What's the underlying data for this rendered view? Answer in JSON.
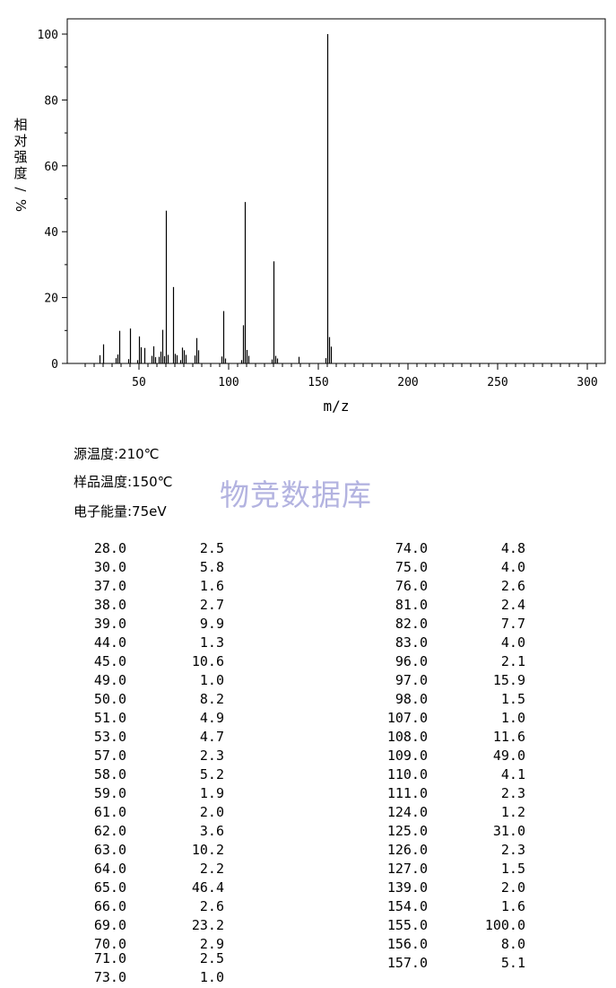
{
  "chart_data": {
    "type": "bar",
    "xlabel": "m/z",
    "ylabel": "相对强度/%",
    "xlim": [
      10,
      310
    ],
    "ylim": [
      0,
      100
    ],
    "xticks": [
      50,
      100,
      150,
      200,
      250,
      300
    ],
    "yticks": [
      0,
      20,
      40,
      60,
      80,
      100
    ],
    "x": [
      28,
      30,
      37,
      38,
      39,
      44,
      45,
      49,
      50,
      51,
      53,
      57,
      58,
      59,
      61,
      62,
      63,
      64,
      65,
      66,
      69,
      70,
      71,
      73,
      74,
      75,
      76,
      81,
      82,
      83,
      96,
      97,
      98,
      107,
      108,
      109,
      110,
      111,
      124,
      125,
      126,
      127,
      139,
      154,
      155,
      156,
      157
    ],
    "values": [
      2.5,
      5.8,
      1.6,
      2.7,
      9.9,
      1.3,
      10.6,
      1.0,
      8.2,
      4.9,
      4.7,
      2.3,
      5.2,
      1.9,
      2.0,
      3.6,
      10.2,
      2.2,
      46.4,
      2.6,
      23.2,
      2.9,
      2.5,
      1.0,
      4.8,
      4.0,
      2.6,
      2.4,
      7.7,
      4.0,
      2.1,
      15.9,
      1.5,
      1.0,
      11.6,
      49.0,
      4.1,
      2.3,
      1.2,
      31.0,
      2.3,
      1.5,
      2.0,
      1.6,
      100.0,
      8.0,
      5.1
    ]
  },
  "conditions": {
    "source_temp": "源温度:210℃",
    "sample_temp": "样品温度:150℃",
    "electron_energy": "电子能量:75eV"
  },
  "watermark": "物竞数据库",
  "peak_table": {
    "left": [
      [
        "28.0",
        "2.5"
      ],
      [
        "30.0",
        "5.8"
      ],
      [
        "37.0",
        "1.6"
      ],
      [
        "38.0",
        "2.7"
      ],
      [
        "39.0",
        "9.9"
      ],
      [
        "44.0",
        "1.3"
      ],
      [
        "45.0",
        "10.6"
      ],
      [
        "49.0",
        "1.0"
      ],
      [
        "50.0",
        "8.2"
      ],
      [
        "51.0",
        "4.9"
      ],
      [
        "53.0",
        "4.7"
      ],
      [
        "57.0",
        "2.3"
      ],
      [
        "58.0",
        "5.2"
      ],
      [
        "59.0",
        "1.9"
      ],
      [
        "61.0",
        "2.0"
      ],
      [
        "62.0",
        "3.6"
      ],
      [
        "63.0",
        "10.2"
      ],
      [
        "64.0",
        "2.2"
      ],
      [
        "65.0",
        "46.4"
      ],
      [
        "66.0",
        "2.6"
      ],
      [
        "69.0",
        "23.2"
      ],
      [
        "70.0",
        "2.9"
      ],
      [
        "71.0",
        "2.5"
      ],
      [
        "73.0",
        "1.0"
      ]
    ],
    "right": [
      [
        "74.0",
        "4.8"
      ],
      [
        "75.0",
        "4.0"
      ],
      [
        "76.0",
        "2.6"
      ],
      [
        "81.0",
        "2.4"
      ],
      [
        "82.0",
        "7.7"
      ],
      [
        "83.0",
        "4.0"
      ],
      [
        "96.0",
        "2.1"
      ],
      [
        "97.0",
        "15.9"
      ],
      [
        "98.0",
        "1.5"
      ],
      [
        "107.0",
        "1.0"
      ],
      [
        "108.0",
        "11.6"
      ],
      [
        "109.0",
        "49.0"
      ],
      [
        "110.0",
        "4.1"
      ],
      [
        "111.0",
        "2.3"
      ],
      [
        "124.0",
        "1.2"
      ],
      [
        "125.0",
        "31.0"
      ],
      [
        "126.0",
        "2.3"
      ],
      [
        "127.0",
        "1.5"
      ],
      [
        "139.0",
        "2.0"
      ],
      [
        "154.0",
        "1.6"
      ],
      [
        "155.0",
        "100.0"
      ],
      [
        "156.0",
        "8.0"
      ],
      [
        "157.0",
        "5.1"
      ]
    ]
  }
}
